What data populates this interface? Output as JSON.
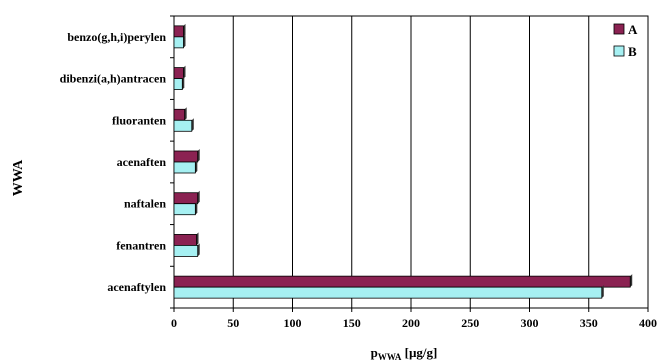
{
  "chart_data": {
    "type": "bar",
    "orientation": "horizontal",
    "title": "",
    "xlabel_main": "p",
    "xlabel_sub": "WWA",
    "xlabel_unit": " [µg/g]",
    "ylabel": "WWA",
    "xlim": [
      0,
      400
    ],
    "x_ticks": [
      "0",
      "50",
      "100",
      "150",
      "200",
      "250",
      "300",
      "350",
      "400"
    ],
    "grid": "vertical",
    "legend_position": "top-right",
    "categories": [
      "benzo(g,h,i)perylen",
      "dibenzi(a,h)antracen",
      "fluoranten",
      "acenaften",
      "naftalen",
      "fenantren",
      "acenaftylen"
    ],
    "series": [
      {
        "name": "A",
        "color": "#8b2252",
        "values": [
          8,
          8,
          9,
          20,
          20,
          19,
          385
        ]
      },
      {
        "name": "B",
        "color": "#a6f0f2",
        "values": [
          8,
          7,
          15,
          18,
          18,
          20,
          361
        ]
      }
    ]
  }
}
